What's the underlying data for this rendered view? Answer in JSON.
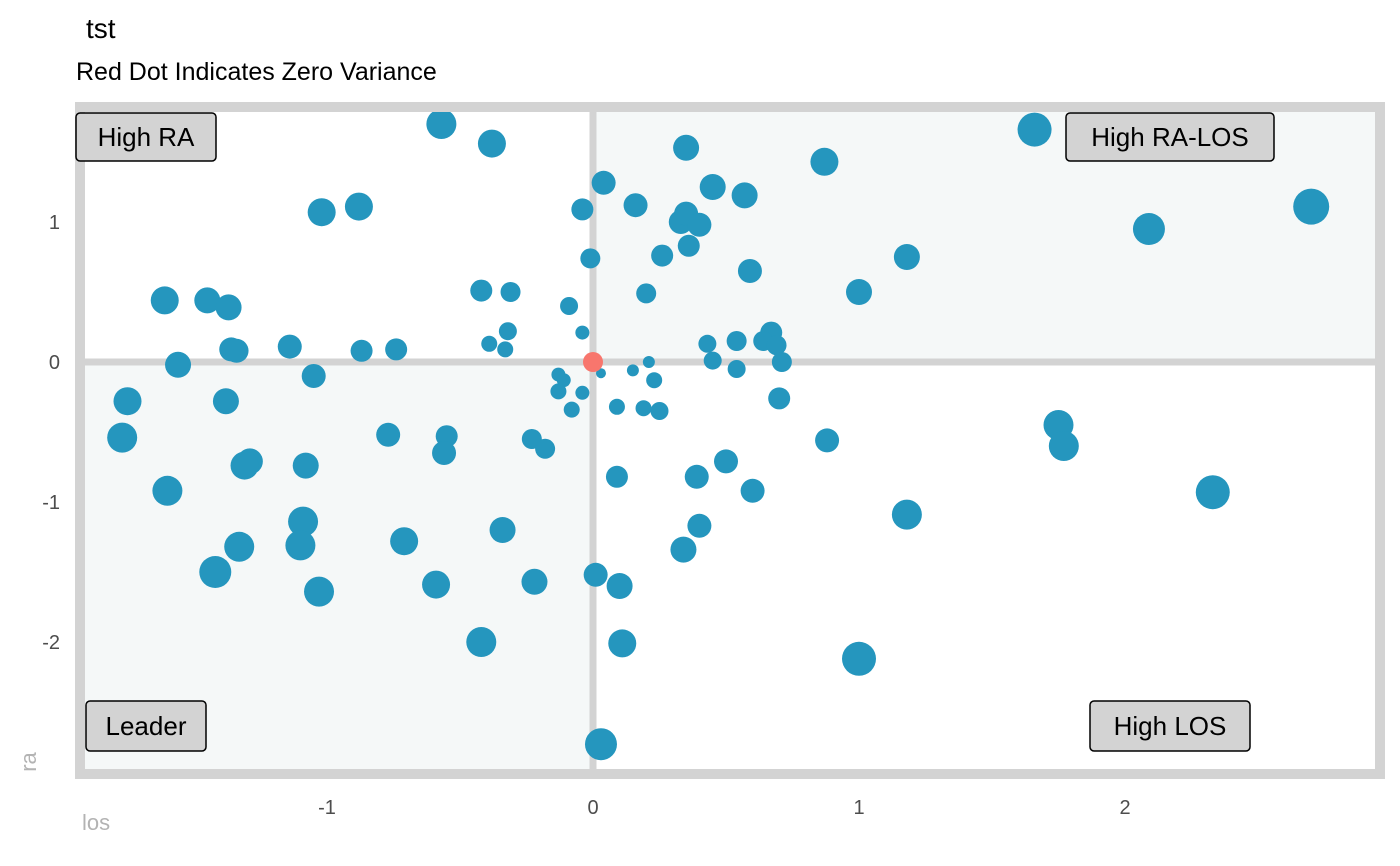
{
  "chart_data": {
    "type": "scatter",
    "title": "tst",
    "subtitle": "Red Dot Indicates Zero Variance",
    "xlabel": "los",
    "ylabel": "ra",
    "xlim": [
      -1.9,
      2.9
    ],
    "ylim": [
      -2.9,
      1.85
    ],
    "x_ticks": [
      -1,
      0,
      1,
      2
    ],
    "y_ticks": [
      -2,
      -1,
      0,
      1
    ],
    "quadrant_labels": {
      "top_left": "High RA",
      "top_right": "High RA-LOS",
      "bottom_left": "Leader",
      "bottom_right": "High LOS"
    },
    "colors": {
      "points": "#2596be",
      "zero_variance": "#f8766d",
      "shaded_quadrant": "#f5f8f8",
      "border": "#d3d3d3",
      "label_box": "#d3d3d3"
    },
    "zero_variance_point": {
      "x": 0,
      "y": 0,
      "r": 10
    },
    "points": [
      {
        "x": -0.57,
        "y": 1.7,
        "r": 15
      },
      {
        "x": -0.38,
        "y": 1.56,
        "r": 14
      },
      {
        "x": -1.02,
        "y": 1.07,
        "r": 14
      },
      {
        "x": -0.88,
        "y": 1.11,
        "r": 14
      },
      {
        "x": -1.61,
        "y": 0.44,
        "r": 14
      },
      {
        "x": -1.45,
        "y": 0.44,
        "r": 13
      },
      {
        "x": -1.37,
        "y": 0.39,
        "r": 13
      },
      {
        "x": -1.36,
        "y": 0.09,
        "r": 12
      },
      {
        "x": -1.34,
        "y": 0.08,
        "r": 12
      },
      {
        "x": -1.56,
        "y": -0.02,
        "r": 13
      },
      {
        "x": -1.14,
        "y": 0.11,
        "r": 12
      },
      {
        "x": -1.05,
        "y": -0.1,
        "r": 12
      },
      {
        "x": -0.87,
        "y": 0.08,
        "r": 11
      },
      {
        "x": -0.74,
        "y": 0.09,
        "r": 11
      },
      {
        "x": -1.75,
        "y": -0.28,
        "r": 14
      },
      {
        "x": -1.77,
        "y": -0.54,
        "r": 15
      },
      {
        "x": -1.38,
        "y": -0.28,
        "r": 13
      },
      {
        "x": -1.29,
        "y": -0.71,
        "r": 13
      },
      {
        "x": -1.31,
        "y": -0.74,
        "r": 14
      },
      {
        "x": -1.6,
        "y": -0.92,
        "r": 15
      },
      {
        "x": -1.08,
        "y": -0.74,
        "r": 13
      },
      {
        "x": -1.09,
        "y": -1.14,
        "r": 15
      },
      {
        "x": -1.1,
        "y": -1.31,
        "r": 15
      },
      {
        "x": -1.33,
        "y": -1.32,
        "r": 15
      },
      {
        "x": -1.42,
        "y": -1.5,
        "r": 16
      },
      {
        "x": -1.03,
        "y": -1.64,
        "r": 15
      },
      {
        "x": -0.71,
        "y": -1.28,
        "r": 14
      },
      {
        "x": -0.77,
        "y": -0.52,
        "r": 12
      },
      {
        "x": -0.55,
        "y": -0.53,
        "r": 11
      },
      {
        "x": -0.56,
        "y": -0.65,
        "r": 12
      },
      {
        "x": -0.59,
        "y": -1.59,
        "r": 14
      },
      {
        "x": -0.42,
        "y": -2.0,
        "r": 15
      },
      {
        "x": -0.34,
        "y": -1.2,
        "r": 13
      },
      {
        "x": -0.22,
        "y": -1.57,
        "r": 13
      },
      {
        "x": -0.23,
        "y": -0.55,
        "r": 10
      },
      {
        "x": -0.18,
        "y": -0.62,
        "r": 10
      },
      {
        "x": -0.42,
        "y": 0.51,
        "r": 11
      },
      {
        "x": -0.31,
        "y": 0.5,
        "r": 10
      },
      {
        "x": -0.32,
        "y": 0.22,
        "r": 9
      },
      {
        "x": -0.39,
        "y": 0.13,
        "r": 8
      },
      {
        "x": -0.33,
        "y": 0.09,
        "r": 8
      },
      {
        "x": -0.09,
        "y": 0.4,
        "r": 9
      },
      {
        "x": -0.04,
        "y": 0.21,
        "r": 7
      },
      {
        "x": -0.01,
        "y": 0.74,
        "r": 10
      },
      {
        "x": -0.04,
        "y": 1.09,
        "r": 11
      },
      {
        "x": 0.04,
        "y": 1.28,
        "r": 12
      },
      {
        "x": 0.16,
        "y": 1.12,
        "r": 12
      },
      {
        "x": 0.35,
        "y": 1.53,
        "r": 13
      },
      {
        "x": 0.45,
        "y": 1.25,
        "r": 13
      },
      {
        "x": 0.57,
        "y": 1.19,
        "r": 13
      },
      {
        "x": 0.87,
        "y": 1.43,
        "r": 14
      },
      {
        "x": 1.66,
        "y": 1.66,
        "r": 17
      },
      {
        "x": 2.7,
        "y": 1.11,
        "r": 18
      },
      {
        "x": 2.09,
        "y": 0.95,
        "r": 16
      },
      {
        "x": 1.18,
        "y": 0.75,
        "r": 13
      },
      {
        "x": 1.0,
        "y": 0.5,
        "r": 13
      },
      {
        "x": 0.33,
        "y": 1.0,
        "r": 12
      },
      {
        "x": 0.35,
        "y": 1.06,
        "r": 12
      },
      {
        "x": 0.4,
        "y": 0.98,
        "r": 12
      },
      {
        "x": 0.36,
        "y": 0.83,
        "r": 11
      },
      {
        "x": 0.26,
        "y": 0.76,
        "r": 11
      },
      {
        "x": 0.59,
        "y": 0.65,
        "r": 12
      },
      {
        "x": 0.2,
        "y": 0.49,
        "r": 10
      },
      {
        "x": 0.67,
        "y": 0.21,
        "r": 11
      },
      {
        "x": 0.64,
        "y": 0.15,
        "r": 10
      },
      {
        "x": 0.69,
        "y": 0.12,
        "r": 10
      },
      {
        "x": 0.54,
        "y": 0.15,
        "r": 10
      },
      {
        "x": 0.43,
        "y": 0.13,
        "r": 9
      },
      {
        "x": 0.45,
        "y": 0.01,
        "r": 9
      },
      {
        "x": 0.71,
        "y": 0.0,
        "r": 10
      },
      {
        "x": 0.54,
        "y": -0.05,
        "r": 9
      },
      {
        "x": 0.21,
        "y": 0.0,
        "r": 6
      },
      {
        "x": 0.15,
        "y": -0.06,
        "r": 6
      },
      {
        "x": 0.03,
        "y": -0.08,
        "r": 5
      },
      {
        "x": 0.23,
        "y": -0.13,
        "r": 8
      },
      {
        "x": -0.13,
        "y": -0.09,
        "r": 7
      },
      {
        "x": -0.11,
        "y": -0.13,
        "r": 7
      },
      {
        "x": -0.13,
        "y": -0.21,
        "r": 8
      },
      {
        "x": -0.04,
        "y": -0.22,
        "r": 7
      },
      {
        "x": -0.08,
        "y": -0.34,
        "r": 8
      },
      {
        "x": 0.09,
        "y": -0.32,
        "r": 8
      },
      {
        "x": 0.19,
        "y": -0.33,
        "r": 8
      },
      {
        "x": 0.25,
        "y": -0.35,
        "r": 9
      },
      {
        "x": 0.7,
        "y": -0.26,
        "r": 11
      },
      {
        "x": 0.88,
        "y": -0.56,
        "r": 12
      },
      {
        "x": 0.5,
        "y": -0.71,
        "r": 12
      },
      {
        "x": 0.39,
        "y": -0.82,
        "r": 12
      },
      {
        "x": 0.09,
        "y": -0.82,
        "r": 11
      },
      {
        "x": 0.6,
        "y": -0.92,
        "r": 12
      },
      {
        "x": 0.4,
        "y": -1.17,
        "r": 12
      },
      {
        "x": 0.34,
        "y": -1.34,
        "r": 13
      },
      {
        "x": 0.01,
        "y": -1.52,
        "r": 12
      },
      {
        "x": 0.1,
        "y": -1.6,
        "r": 13
      },
      {
        "x": 0.11,
        "y": -2.01,
        "r": 14
      },
      {
        "x": 1.0,
        "y": -2.12,
        "r": 17
      },
      {
        "x": 1.18,
        "y": -1.09,
        "r": 15
      },
      {
        "x": 1.75,
        "y": -0.45,
        "r": 15
      },
      {
        "x": 1.77,
        "y": -0.6,
        "r": 15
      },
      {
        "x": 2.33,
        "y": -0.93,
        "r": 17
      },
      {
        "x": 0.03,
        "y": -2.73,
        "r": 16
      }
    ]
  }
}
